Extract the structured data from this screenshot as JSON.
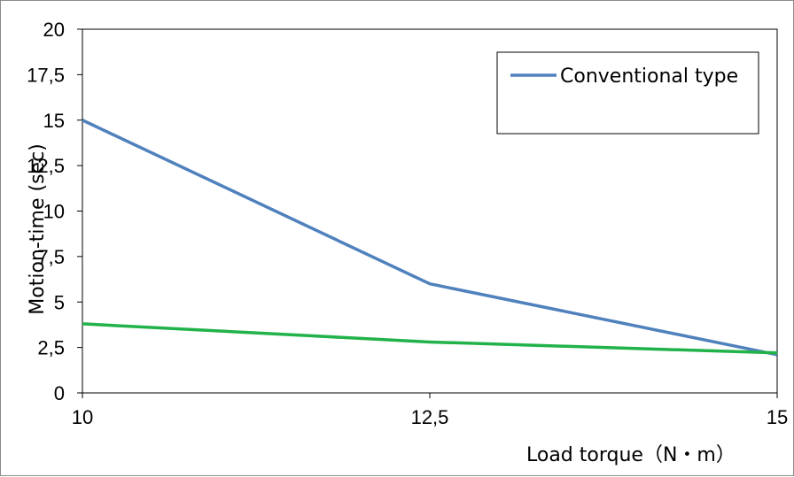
{
  "chart_data": {
    "type": "line",
    "x": [
      "10",
      "12,5",
      "15"
    ],
    "series": [
      {
        "name": "Conventional type",
        "values": [
          15,
          6,
          2.1
        ],
        "color": "#4f81bd"
      },
      {
        "values": [
          3.8,
          2.8,
          2.2
        ],
        "color": "#21b24a"
      }
    ],
    "yticks": [
      "0",
      "2,5",
      "5",
      "7,5",
      "10",
      "12,5",
      "15",
      "17,5",
      "20"
    ],
    "ylim": [
      0,
      20
    ],
    "xlabel": "Load torque（N・m）",
    "ylabel": "Motion-time (sec)",
    "grid": false,
    "legend": {
      "position": "top-right",
      "entries": [
        "Conventional type"
      ]
    }
  }
}
